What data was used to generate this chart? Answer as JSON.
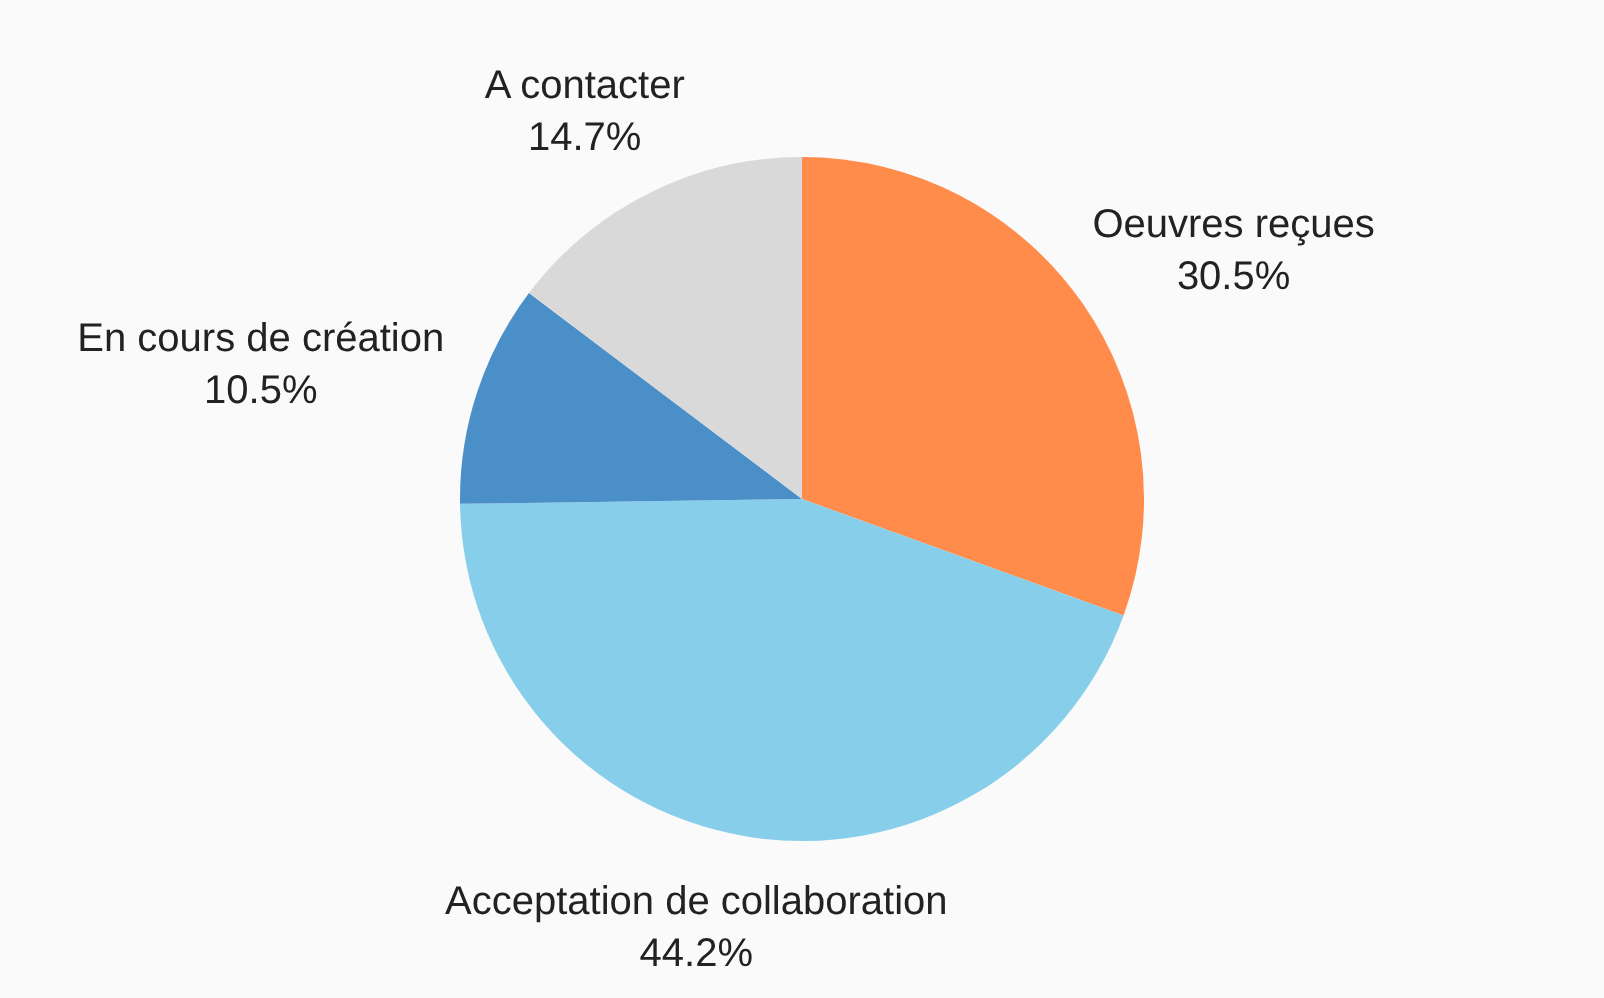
{
  "chart_data": {
    "type": "pie",
    "categories": [
      "Oeuvres reçues",
      "Acceptation de collaboration",
      "En cours de création",
      "A contacter"
    ],
    "values": [
      30.5,
      44.2,
      10.5,
      14.7
    ],
    "colors": [
      "#ff8c4a",
      "#87ceeb",
      "#4a8fc8",
      "#d9d9d9"
    ],
    "value_labels": [
      "30.5%",
      "44.2%",
      "10.5%",
      "14.7%"
    ],
    "legend": false
  }
}
